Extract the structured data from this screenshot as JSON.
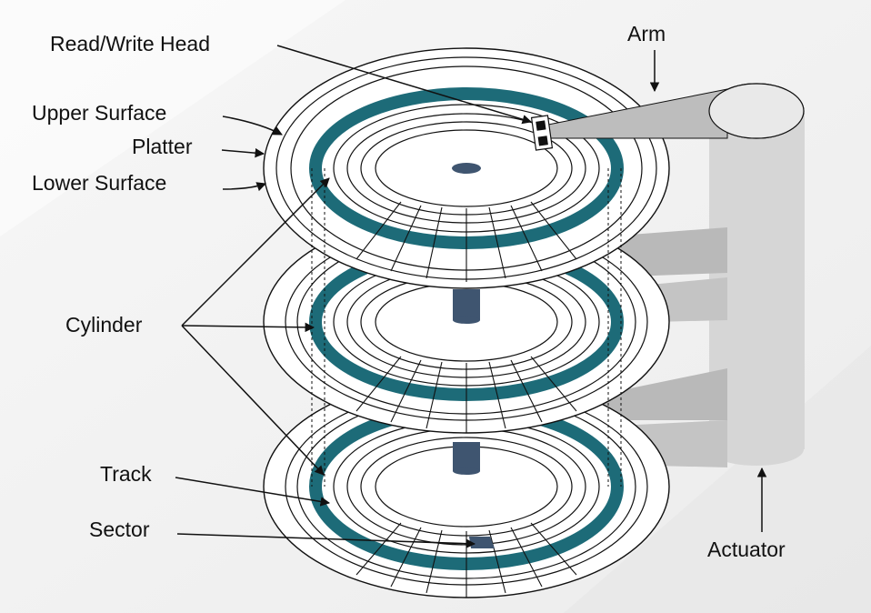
{
  "labels": {
    "read_write_head": "Read/Write Head",
    "arm": "Arm",
    "upper_surface": "Upper Surface",
    "platter": "Platter",
    "lower_surface": "Lower Surface",
    "cylinder": "Cylinder",
    "track": "Track",
    "sector": "Sector",
    "actuator": "Actuator"
  },
  "colors": {
    "background": "#f2f2f2",
    "cylinder_track": "#1d6b78",
    "spindle": "#3f5570",
    "sector_highlight": "#3f5570",
    "arm_fill": "#bdbdbd",
    "actuator_fill": "#d6d6d6",
    "platter_fill": "#ffffff",
    "line": "#111111"
  },
  "platter_count": 3
}
